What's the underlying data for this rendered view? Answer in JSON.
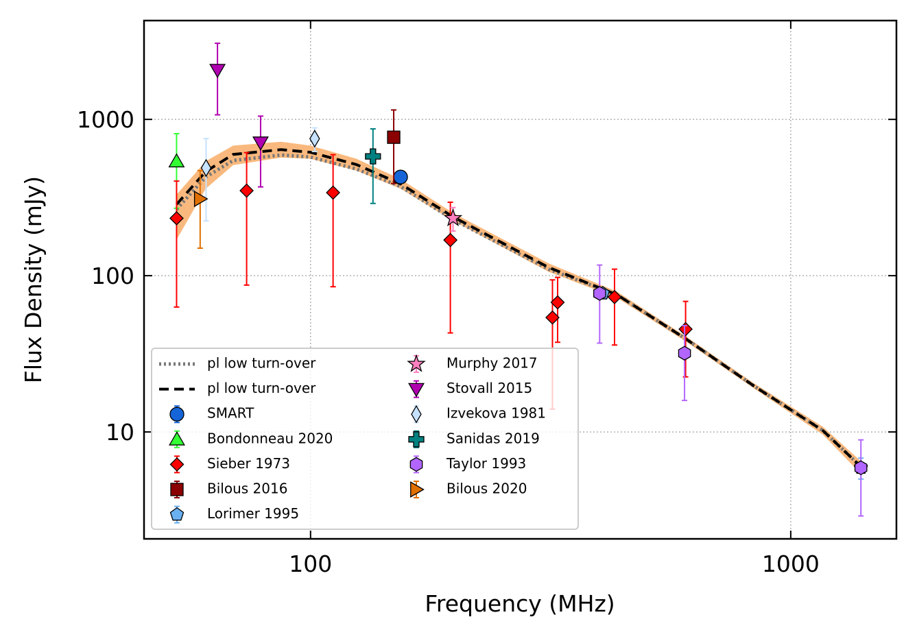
{
  "chart_data": {
    "type": "scatter",
    "x_label": "Frequency (MHz)",
    "y_label": "Flux Density (mJy)",
    "log_x": true,
    "log_y": true,
    "grid": true,
    "legend": "lower left",
    "xlim": [
      45,
      1660
    ],
    "ylim": [
      2.07,
      4290
    ],
    "xticks": [
      100,
      1000
    ],
    "yticks": [
      10,
      100,
      1000
    ],
    "band": {
      "color": "#f9b97e",
      "x": [
        52.6,
        60.5,
        69,
        86.9,
        100,
        124.6,
        154,
        198,
        313,
        435,
        604,
        838,
        1167,
        1400
      ],
      "upper": [
        330,
        540,
        680,
        720,
        680,
        560,
        415,
        252,
        120,
        79,
        41,
        20.5,
        10.8,
        6.5
      ],
      "lower": [
        170,
        360,
        510,
        570,
        560,
        470,
        360,
        225,
        106,
        72,
        38,
        19,
        9.6,
        5.4
      ]
    },
    "lines": [
      {
        "name": "pl low turn-over",
        "style": "dotted",
        "color": "#777777",
        "x": [
          52.6,
          60.5,
          69,
          86.9,
          100,
          124.6,
          154,
          198,
          313,
          435,
          604,
          838,
          1167,
          1400
        ],
        "values": [
          266,
          428,
          546,
          592,
          574,
          481,
          372,
          229,
          110,
          75.4,
          39.5,
          19.7,
          10.2,
          6.0
        ]
      },
      {
        "name": "pl low turn-over",
        "style": "dashed",
        "color": "#000000",
        "x": [
          52.6,
          60.5,
          69,
          86.9,
          100,
          124.6,
          154,
          198,
          313,
          435,
          604,
          838,
          1167,
          1400
        ],
        "values": [
          286,
          464,
          597,
          641,
          616,
          514,
          387,
          238,
          113,
          75.4,
          39.5,
          19.7,
          10.2,
          6.0
        ]
      }
    ],
    "series": [
      {
        "name": "SMART",
        "marker": "circle",
        "color": "#1565d8",
        "x": [
          154
        ],
        "values": [
          428
        ],
        "errors": [
          20
        ]
      },
      {
        "name": "Bondonneau 2020",
        "marker": "triangle-up",
        "color": "#33ff33",
        "x": [
          52.6
        ],
        "values": [
          540
        ],
        "errors": [
          270
        ]
      },
      {
        "name": "Sieber 1973",
        "marker": "diamond",
        "color": "#ff0000",
        "x": [
          52.6,
          73.6,
          111.4,
          195.5,
          319,
          327,
          429.6,
          604
        ],
        "values": [
          233,
          350,
          340,
          169,
          54,
          67.5,
          73,
          45.5
        ],
        "errors": [
          170,
          263,
          255,
          126,
          40,
          30,
          37,
          23
        ]
      },
      {
        "name": "Bilous 2016",
        "marker": "square",
        "color": "#8b0000",
        "x": [
          149
        ],
        "values": [
          769
        ],
        "errors": [
          380
        ]
      },
      {
        "name": "Lorimer 1995",
        "marker": "pentagon",
        "color": "#6ab0f0",
        "x": [
          406,
          1400
        ],
        "values": [
          77,
          5.9
        ],
        "errors": [
          3,
          0.9
        ]
      },
      {
        "name": "Murphy 2017",
        "marker": "star",
        "color": "#ff7fbf",
        "x": [
          198
        ],
        "values": [
          233
        ],
        "errors": [
          40
        ]
      },
      {
        "name": "Stovall 2015",
        "marker": "triangle-down",
        "color": "#b000b0",
        "x": [
          64,
          78.7
        ],
        "values": [
          2070,
          710
        ],
        "errors": [
          1000,
          340
        ]
      },
      {
        "name": "Izvekova 1981",
        "marker": "thin-diamond",
        "color": "#c6e2ff",
        "x": [
          60.6,
          102
        ],
        "values": [
          489,
          753
        ],
        "errors": [
          265,
          130
        ]
      },
      {
        "name": "Sanidas 2019",
        "marker": "plus",
        "color": "#008080",
        "x": [
          134.9
        ],
        "values": [
          580
        ],
        "errors": [
          290
        ]
      },
      {
        "name": "Taylor 1993",
        "marker": "hexagon",
        "color": "#b266ff",
        "x": [
          400,
          601,
          1400
        ],
        "values": [
          77,
          31.9,
          5.9
        ],
        "errors": [
          40,
          16,
          3
        ]
      },
      {
        "name": "Bilous 2020",
        "marker": "triangle-right",
        "color": "#e07000",
        "x": [
          58.9
        ],
        "values": [
          310
        ],
        "errors": [
          160
        ]
      }
    ]
  }
}
